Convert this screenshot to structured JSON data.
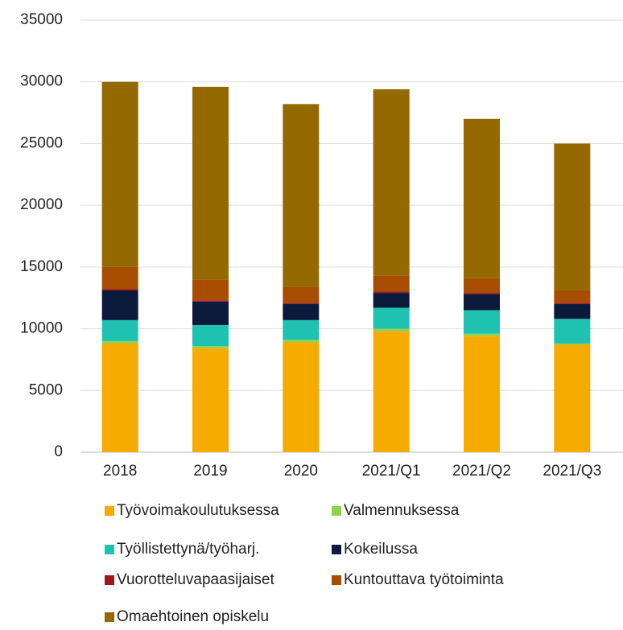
{
  "chart_data": {
    "type": "stacked_bar",
    "categories": [
      "2018",
      "2019",
      "2020",
      "2021/Q1",
      "2021/Q2",
      "2021/Q3"
    ],
    "series": [
      {
        "name": "Työvoimakoulutuksessa",
        "color": "#f5ab00",
        "values": [
          8800,
          8400,
          8900,
          9800,
          9400,
          8700
        ]
      },
      {
        "name": "Valmennuksessa",
        "color": "#92d050",
        "values": [
          200,
          200,
          200,
          200,
          200,
          100
        ]
      },
      {
        "name": "Työllistettynä/työharj.",
        "color": "#1fc1b0",
        "values": [
          1700,
          1700,
          1600,
          1700,
          1900,
          2000
        ]
      },
      {
        "name": "Kokeilussa",
        "color": "#0b1a3a",
        "values": [
          2400,
          1900,
          1300,
          1200,
          1300,
          1200
        ]
      },
      {
        "name": "Vuorotteluvapaasijaiset",
        "color": "#a0141e",
        "values": [
          100,
          100,
          100,
          100,
          100,
          100
        ]
      },
      {
        "name": "Kuntouttava työtoiminta",
        "color": "#a64d00",
        "values": [
          1800,
          1700,
          1300,
          1300,
          1200,
          1000
        ]
      },
      {
        "name": "Omaehtoinen opiskelu",
        "color": "#946a00",
        "values": [
          15000,
          15600,
          14800,
          15100,
          12900,
          11900
        ]
      }
    ],
    "ylim": [
      0,
      35000
    ],
    "yticks": [
      0,
      5000,
      10000,
      15000,
      20000,
      25000,
      30000,
      35000
    ],
    "grid": true
  }
}
